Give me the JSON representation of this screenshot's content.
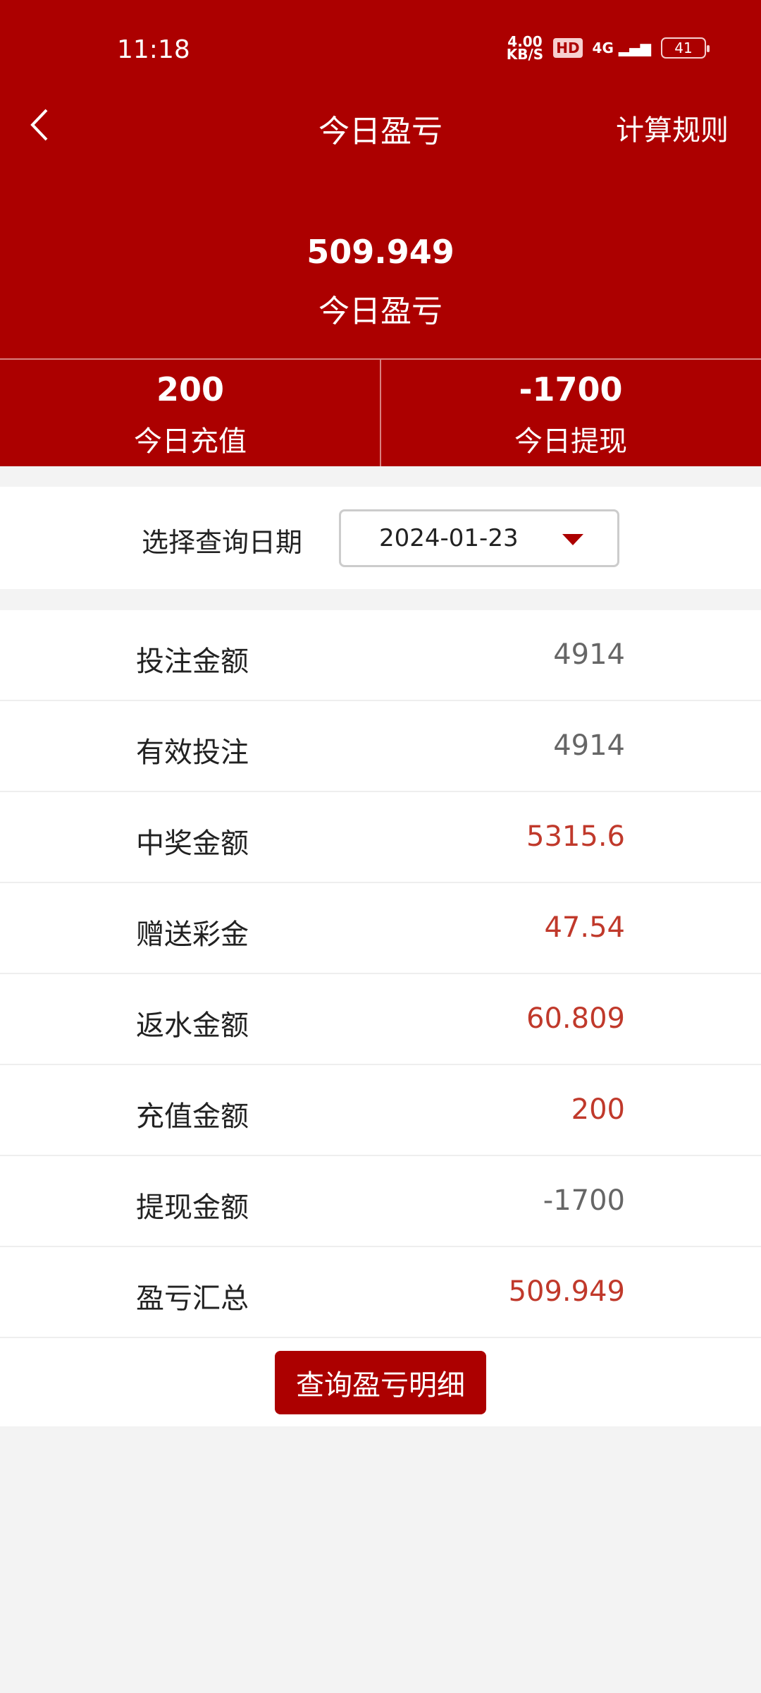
{
  "status_bar": {
    "time": "11:18",
    "net_speed": "4.00",
    "net_unit": "KB/S",
    "hd": "HD",
    "network": "4G",
    "battery": "41"
  },
  "nav": {
    "title": "今日盈亏",
    "rules": "计算规则"
  },
  "summary": {
    "value": "509.949",
    "label": "今日盈亏"
  },
  "stats": [
    {
      "value": "200",
      "label": "今日充值"
    },
    {
      "value": "-1700",
      "label": "今日提现"
    }
  ],
  "date": {
    "label": "选择查询日期",
    "value": "2024-01-23"
  },
  "rows": [
    {
      "label": "投注金额",
      "value": "4914",
      "red": false
    },
    {
      "label": "有效投注",
      "value": "4914",
      "red": false
    },
    {
      "label": "中奖金额",
      "value": "5315.6",
      "red": true
    },
    {
      "label": "赠送彩金",
      "value": "47.54",
      "red": true
    },
    {
      "label": "返水金额",
      "value": "60.809",
      "red": true
    },
    {
      "label": "充值金额",
      "value": "200",
      "red": true
    },
    {
      "label": "提现金额",
      "value": "-1700",
      "red": false
    },
    {
      "label": "盈亏汇总",
      "value": "509.949",
      "red": true
    }
  ],
  "button": "查询盈亏明细",
  "colors": {
    "brand": "#ac0000",
    "value_red": "#c0392b",
    "value_gray": "#666666"
  }
}
